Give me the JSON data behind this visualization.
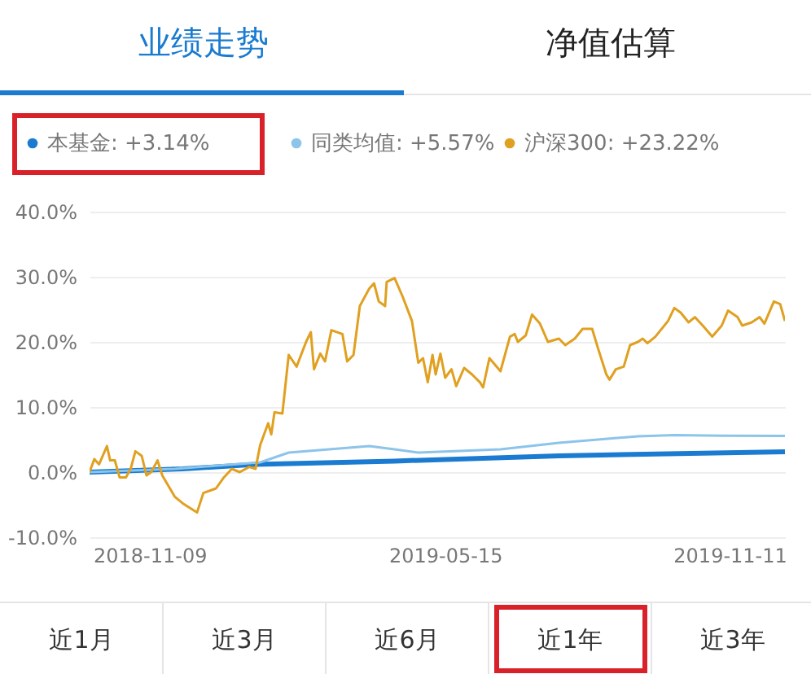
{
  "chart_data": {
    "type": "line",
    "x": [
      "2018-10-02",
      "2018-10-05",
      "2018-10-08",
      "2018-10-13",
      "2018-10-15",
      "2018-10-18",
      "2018-10-21",
      "2018-10-25",
      "2018-10-28",
      "2018-10-31",
      "2018-11-04",
      "2018-11-07",
      "2018-11-10",
      "2018-11-14",
      "2018-11-17",
      "2018-11-25",
      "2018-11-30",
      "2018-12-09",
      "2018-12-13",
      "2018-12-21",
      "2018-12-26",
      "2018-12-31",
      "2019-01-05",
      "2019-01-11",
      "2019-01-15",
      "2019-01-18",
      "2019-01-23",
      "2019-01-25",
      "2019-01-27",
      "2019-02-01",
      "2019-02-05",
      "2019-02-10",
      "2019-02-16",
      "2019-02-19",
      "2019-02-21",
      "2019-02-25",
      "2019-02-28",
      "2019-03-04",
      "2019-03-11",
      "2019-03-14",
      "2019-03-18",
      "2019-03-22",
      "2019-03-28",
      "2019-03-31",
      "2019-04-03",
      "2019-04-07",
      "2019-04-08",
      "2019-04-13",
      "2019-04-18",
      "2019-04-24",
      "2019-04-28",
      "2019-05-01",
      "2019-05-04",
      "2019-05-07",
      "2019-05-09",
      "2019-05-12",
      "2019-05-15",
      "2019-05-19",
      "2019-05-22",
      "2019-05-27",
      "2019-06-01",
      "2019-06-06",
      "2019-06-08",
      "2019-06-12",
      "2019-06-19",
      "2019-06-25",
      "2019-06-28",
      "2019-06-30",
      "2019-07-05",
      "2019-07-09",
      "2019-07-14",
      "2019-07-19",
      "2019-07-26",
      "2019-07-30",
      "2019-08-05",
      "2019-08-10",
      "2019-08-16",
      "2019-08-20",
      "2019-08-25",
      "2019-08-27",
      "2019-08-31",
      "2019-09-05",
      "2019-09-09",
      "2019-09-14",
      "2019-09-17",
      "2019-09-20",
      "2019-09-25",
      "2019-10-03",
      "2019-10-07",
      "2019-10-11",
      "2019-10-16",
      "2019-10-20",
      "2019-10-25",
      "2019-10-31",
      "2019-11-06",
      "2019-11-10",
      "2019-11-16",
      "2019-11-19",
      "2019-11-25",
      "2019-11-30",
      "2019-12-03",
      "2019-12-09",
      "2019-12-13",
      "2019-12-16"
    ],
    "series": [
      {
        "name": "本基金: +3.14%",
        "color": "#1a7bd0",
        "x": [
          "2018-10-02",
          "2018-11-30",
          "2019-01-15",
          "2019-04-13",
          "2019-07-26",
          "2019-12-16"
        ],
        "values": [
          0,
          0.5,
          1.2,
          1.7,
          2.5,
          3.14
        ]
      },
      {
        "name": "同类均值: +5.57%",
        "color": "#8cc4ea",
        "x": [
          "2018-10-02",
          "2018-11-25",
          "2019-01-18",
          "2019-02-05",
          "2019-03-28",
          "2019-04-13",
          "2019-04-28",
          "2019-06-19",
          "2019-07-26",
          "2019-09-14",
          "2019-10-07",
          "2019-11-06",
          "2019-12-16"
        ],
        "values": [
          0,
          0.5,
          1.5,
          3,
          4,
          3.5,
          3,
          3.5,
          4.5,
          5.5,
          5.7,
          5.6,
          5.57
        ]
      },
      {
        "name": "沪深300: +23.22%",
        "color": "#e0a020",
        "values": [
          0,
          2,
          1.2,
          4,
          1.8,
          1.8,
          -0.8,
          -0.8,
          0.5,
          3.2,
          2.5,
          -0.5,
          0,
          1.8,
          -0.5,
          -3.8,
          -4.8,
          -6.2,
          -3.2,
          -2.5,
          -0.8,
          0.5,
          0,
          0.8,
          0.5,
          4.2,
          7.5,
          5.8,
          9.2,
          9,
          18,
          16.2,
          20,
          21.5,
          15.8,
          18.2,
          17,
          21.8,
          21.2,
          17,
          18,
          25.5,
          28.2,
          29,
          26.2,
          25.5,
          29.2,
          29.8,
          27,
          23.2,
          16.8,
          17.5,
          13.8,
          18,
          15,
          18.2,
          14.5,
          15.8,
          13.2,
          16,
          15,
          13.8,
          13,
          17.5,
          15.5,
          20.8,
          21.2,
          20,
          21,
          24.2,
          22.8,
          20,
          20.5,
          19.5,
          20.5,
          22,
          22,
          18.8,
          15,
          14.2,
          15.8,
          16.2,
          19.5,
          20,
          20.5,
          19.8,
          20.8,
          23.2,
          25.2,
          24.5,
          23,
          23.8,
          22.5,
          20.8,
          22.5,
          24.8,
          23.8,
          22.5,
          23,
          23.8,
          22.8,
          26.2,
          25.8,
          23.22
        ]
      }
    ],
    "xlim": [
      "2018-10-02",
      "2019-12-16"
    ],
    "xticks": [
      "2018-11-09",
      "2019-05-15",
      "2019-11-11"
    ],
    "ylim": [
      -10,
      40
    ],
    "yticks": [
      {
        "value": -10,
        "label": "-10.0%"
      },
      {
        "value": 0,
        "label": "0.0%"
      },
      {
        "value": 10,
        "label": "10.0%"
      },
      {
        "value": 20,
        "label": "20.0%"
      },
      {
        "value": 30,
        "label": "30.0%"
      },
      {
        "value": 40,
        "label": "40.0%"
      }
    ],
    "grid": "y",
    "legend": "top",
    "annotations": [
      "业绩走势",
      "净值估算",
      "近1月",
      "近3月",
      "近6月",
      "近1年",
      "近3年"
    ]
  }
}
